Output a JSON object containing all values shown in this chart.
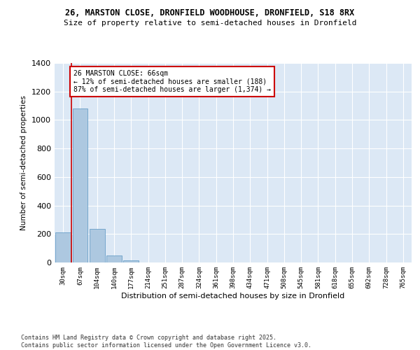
{
  "title_line1": "26, MARSTON CLOSE, DRONFIELD WOODHOUSE, DRONFIELD, S18 8RX",
  "title_line2": "Size of property relative to semi-detached houses in Dronfield",
  "xlabel": "Distribution of semi-detached houses by size in Dronfield",
  "ylabel": "Number of semi-detached properties",
  "categories": [
    "30sqm",
    "67sqm",
    "104sqm",
    "140sqm",
    "177sqm",
    "214sqm",
    "251sqm",
    "287sqm",
    "324sqm",
    "361sqm",
    "398sqm",
    "434sqm",
    "471sqm",
    "508sqm",
    "545sqm",
    "581sqm",
    "618sqm",
    "655sqm",
    "692sqm",
    "728sqm",
    "765sqm"
  ],
  "values": [
    213,
    1083,
    238,
    48,
    14,
    0,
    0,
    0,
    0,
    0,
    0,
    0,
    0,
    0,
    0,
    0,
    0,
    0,
    0,
    0,
    0
  ],
  "bar_color": "#adc8e0",
  "bar_edge_color": "#6aa0c8",
  "vline_color": "#cc0000",
  "annotation_title": "26 MARSTON CLOSE: 66sqm",
  "annotation_line2": "← 12% of semi-detached houses are smaller (188)",
  "annotation_line3": "87% of semi-detached houses are larger (1,374) →",
  "annotation_box_color": "#cc0000",
  "ylim": [
    0,
    1400
  ],
  "yticks": [
    0,
    200,
    400,
    600,
    800,
    1000,
    1200,
    1400
  ],
  "background_color": "#dce8f5",
  "grid_color": "#ffffff",
  "footer_line1": "Contains HM Land Registry data © Crown copyright and database right 2025.",
  "footer_line2": "Contains public sector information licensed under the Open Government Licence v3.0."
}
